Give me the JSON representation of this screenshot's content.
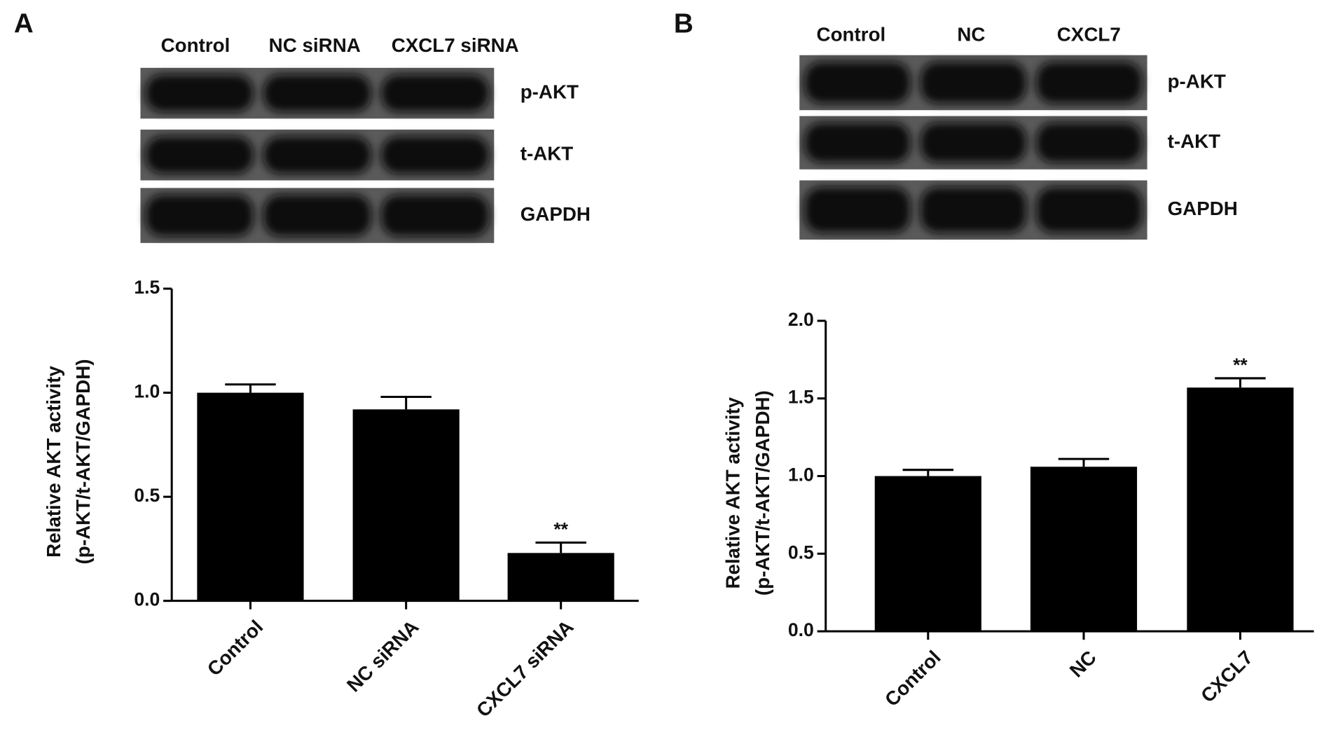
{
  "chart_data": [
    {
      "type": "bar",
      "panel_label": "A",
      "blot_lanes": [
        "Control",
        "NC siRNA",
        "CXCL7 siRNA"
      ],
      "blot_rows": [
        "p-AKT",
        "t-AKT",
        "GAPDH"
      ],
      "ylabel": [
        "Relative AKT activity",
        "(p-AKT/t-AKT/GAPDH)"
      ],
      "categories": [
        "Control",
        "NC siRNA",
        "CXCL7 siRNA"
      ],
      "values": [
        1.0,
        0.92,
        0.23
      ],
      "errors": [
        0.04,
        0.06,
        0.05
      ],
      "significance": [
        null,
        null,
        "**"
      ],
      "color": "#000000",
      "ylim": [
        0,
        1.5
      ],
      "yticks": [
        {
          "value": 0,
          "label": "0.0"
        },
        0.5,
        {
          "value": 1,
          "label": "1.0"
        },
        1.5
      ]
    },
    {
      "type": "bar",
      "panel_label": "B",
      "blot_lanes": [
        "Control",
        "NC",
        "CXCL7"
      ],
      "blot_rows": [
        "p-AKT",
        "t-AKT",
        "GAPDH"
      ],
      "ylabel": [
        "Relative AKT activity",
        "(p-AKT/t-AKT/GAPDH)"
      ],
      "categories": [
        "Control",
        "NC",
        "CXCL7"
      ],
      "values": [
        1.0,
        1.06,
        1.57
      ],
      "errors": [
        0.04,
        0.05,
        0.06
      ],
      "significance": [
        null,
        null,
        "**"
      ],
      "color": "#000000",
      "ylim": [
        0,
        2.0
      ],
      "yticks": [
        {
          "value": 0,
          "label": "0.0"
        },
        0.5,
        {
          "value": 1,
          "label": "1.0"
        },
        1.5,
        {
          "value": 2,
          "label": "2.0"
        }
      ]
    }
  ]
}
